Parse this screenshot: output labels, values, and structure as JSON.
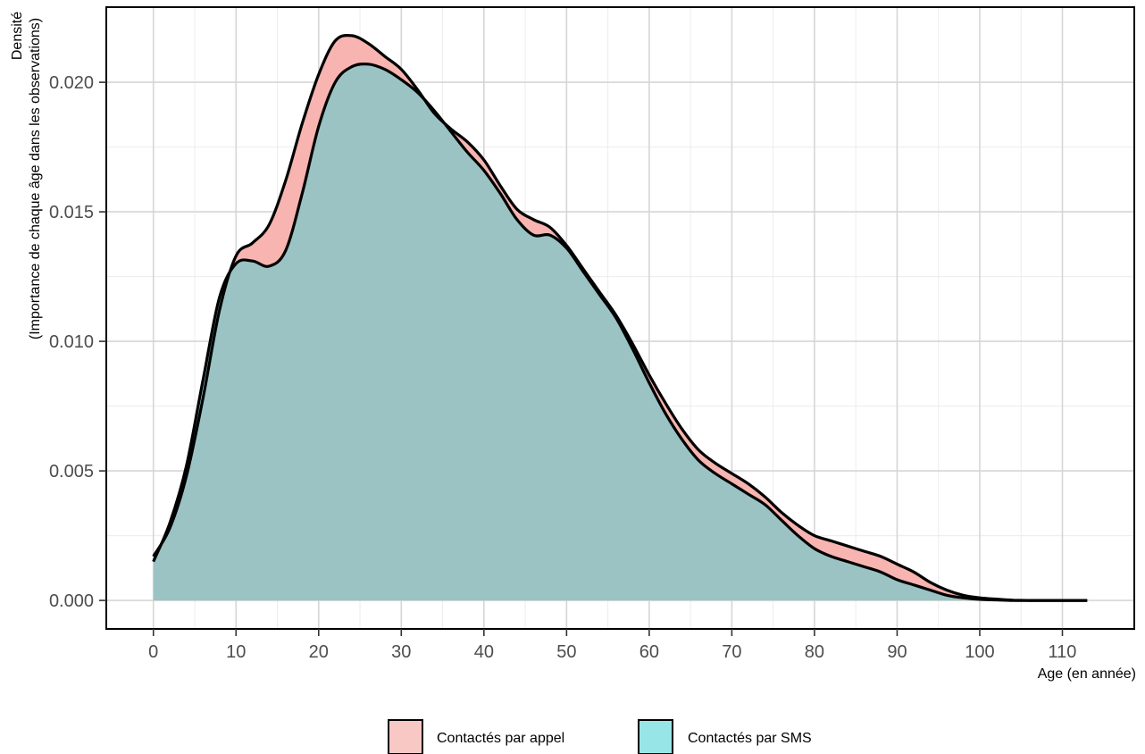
{
  "chart_data": {
    "type": "area",
    "title": "",
    "xlabel": "Age (en année)",
    "ylabel_line1": "Densité",
    "ylabel_line2": "(Importance de chaque âge dans les observations)",
    "xlim": [
      -5.7,
      118.7
    ],
    "ylim": [
      -0.0011,
      0.0229
    ],
    "x_ticks": [
      0,
      10,
      20,
      30,
      40,
      50,
      60,
      70,
      80,
      90,
      100,
      110
    ],
    "y_ticks": [
      0.0,
      0.005,
      0.01,
      0.015,
      0.02
    ],
    "y_tick_labels": [
      "0.000",
      "0.005",
      "0.010",
      "0.015",
      "0.020"
    ],
    "grid": true,
    "legend_position": "bottom",
    "series": [
      {
        "name": "Contactés par appel",
        "color": "#F8766D",
        "fill": "#F8B4B0",
        "x": [
          0,
          2,
          4,
          6,
          8,
          10,
          12,
          14,
          16,
          18,
          20,
          22,
          24,
          26,
          28,
          30,
          32,
          34,
          36,
          38,
          40,
          42,
          44,
          46,
          48,
          50,
          52,
          54,
          56,
          58,
          60,
          62,
          64,
          66,
          68,
          70,
          72,
          74,
          76,
          78,
          80,
          82,
          84,
          86,
          88,
          90,
          92,
          94,
          96,
          98,
          100,
          102,
          104,
          106,
          108,
          110,
          113
        ],
        "y": [
          0.0017,
          0.0028,
          0.0048,
          0.0078,
          0.0112,
          0.0133,
          0.0138,
          0.0145,
          0.0162,
          0.0184,
          0.0203,
          0.0216,
          0.0218,
          0.0215,
          0.021,
          0.0205,
          0.0197,
          0.0188,
          0.0182,
          0.0177,
          0.017,
          0.016,
          0.0151,
          0.0147,
          0.0144,
          0.0137,
          0.0128,
          0.0119,
          0.011,
          0.0099,
          0.0087,
          0.0076,
          0.0066,
          0.0058,
          0.0053,
          0.0049,
          0.0045,
          0.004,
          0.0034,
          0.0029,
          0.0025,
          0.0023,
          0.0021,
          0.0019,
          0.0017,
          0.0014,
          0.0011,
          0.0007,
          0.0004,
          0.0002,
          0.0001,
          5e-05,
          1e-05,
          0.0,
          0.0,
          0.0,
          0.0
        ]
      },
      {
        "name": "Contactés par SMS",
        "color": "#00BFC4",
        "fill": "#94E0E2",
        "x": [
          0,
          2,
          4,
          6,
          8,
          10,
          12,
          14,
          16,
          18,
          20,
          22,
          24,
          26,
          28,
          30,
          32,
          34,
          36,
          38,
          40,
          42,
          44,
          46,
          48,
          50,
          52,
          54,
          56,
          58,
          60,
          62,
          64,
          66,
          68,
          70,
          72,
          74,
          76,
          78,
          80,
          82,
          84,
          86,
          88,
          90,
          92,
          94,
          96,
          98,
          100,
          102,
          104,
          106,
          108,
          110,
          113
        ],
        "y": [
          0.0015,
          0.003,
          0.0052,
          0.0085,
          0.0117,
          0.013,
          0.0131,
          0.0129,
          0.0135,
          0.0157,
          0.0183,
          0.02,
          0.0206,
          0.0207,
          0.0205,
          0.0201,
          0.0196,
          0.0189,
          0.0181,
          0.0173,
          0.0166,
          0.0157,
          0.0147,
          0.0141,
          0.0141,
          0.0136,
          0.0127,
          0.0118,
          0.0109,
          0.0097,
          0.0084,
          0.0072,
          0.0062,
          0.0054,
          0.0049,
          0.0045,
          0.0041,
          0.0037,
          0.0031,
          0.0025,
          0.002,
          0.0017,
          0.0015,
          0.0013,
          0.0011,
          0.0008,
          0.0006,
          0.0004,
          0.0002,
          0.0001,
          4e-05,
          2e-05,
          0.0,
          0.0,
          0.0,
          0.0,
          0.0
        ]
      }
    ],
    "overlap_fill": "#9BC3C4",
    "legend": [
      {
        "label": "Contactés par appel",
        "swatch": "#F8C8C5"
      },
      {
        "label": "Contactés par SMS",
        "swatch": "#98E5E8"
      }
    ]
  }
}
